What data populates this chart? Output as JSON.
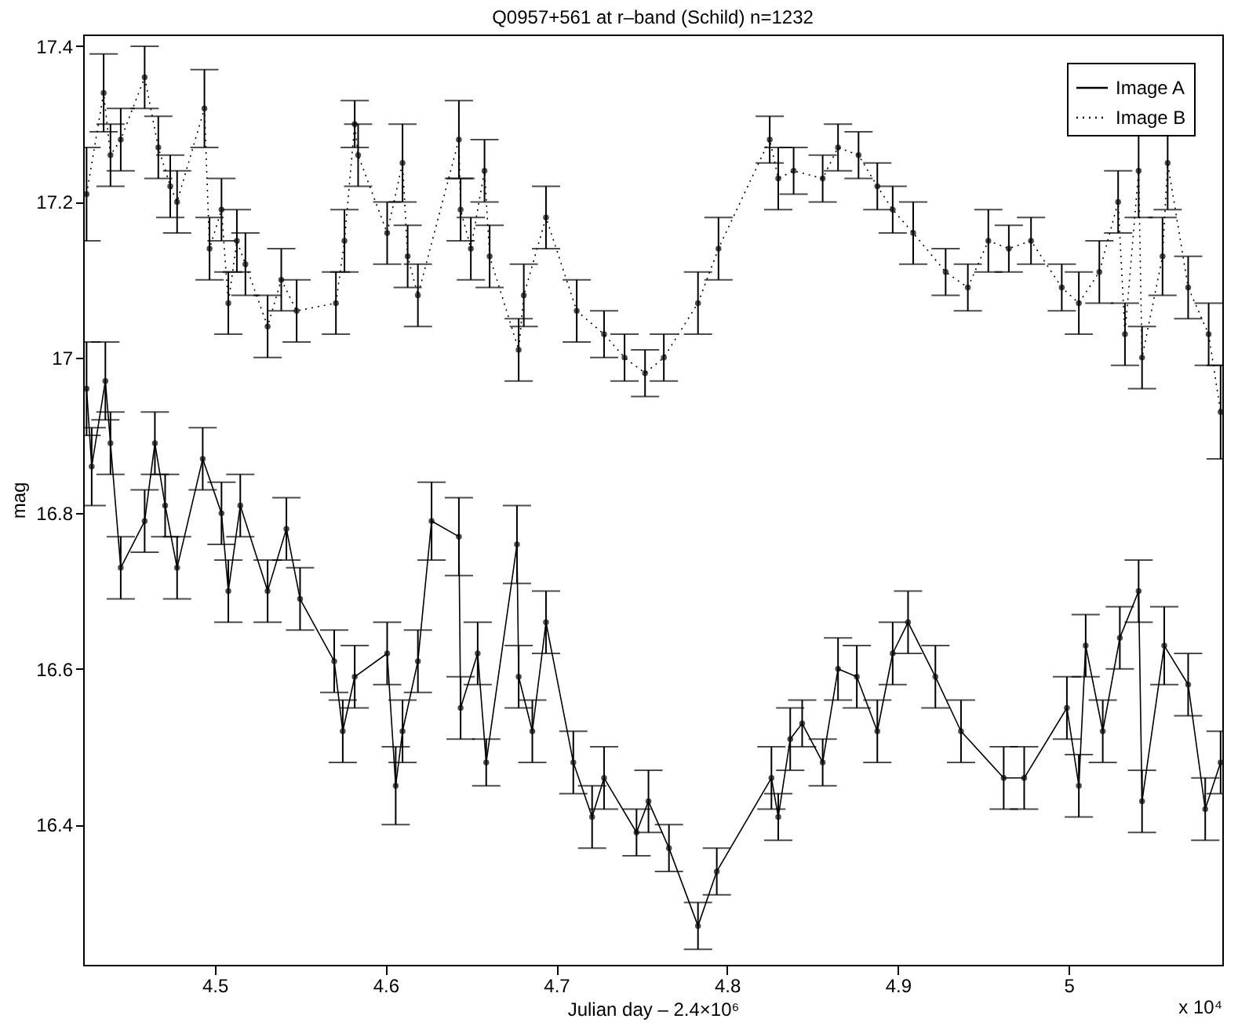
{
  "chart_data": {
    "type": "line",
    "title": "Q0957+561 at r–band (Schild)    n=1232",
    "xlabel": "Julian day  – 2.4×10⁶",
    "ylabel": "mag",
    "annotations": [
      "x 10⁴"
    ],
    "xlim": [
      4.423,
      5.09
    ],
    "ylim": [
      16.22,
      17.415
    ],
    "xticks": [
      4.5,
      4.6,
      4.7,
      4.8,
      4.9,
      5
    ],
    "yticks": [
      16.4,
      16.6,
      16.8,
      17,
      17.2,
      17.4
    ],
    "grid": false,
    "legend": "top right",
    "series": [
      {
        "name": "Image A",
        "color": "#000000",
        "line_style": "solid",
        "marker": "circle",
        "x": [
          4.425,
          4.428,
          4.436,
          4.439,
          4.445,
          4.459,
          4.465,
          4.471,
          4.478,
          4.493,
          4.504,
          4.508,
          4.515,
          4.531,
          4.542,
          4.55,
          4.57,
          4.575,
          4.582,
          4.601,
          4.606,
          4.61,
          4.619,
          4.627,
          4.643,
          4.644,
          4.654,
          4.659,
          4.677,
          4.678,
          4.686,
          4.694,
          4.71,
          4.721,
          4.728,
          4.747,
          4.754,
          4.766,
          4.783,
          4.794,
          4.826,
          4.83,
          4.837,
          4.844,
          4.856,
          4.865,
          4.876,
          4.888,
          4.897,
          4.906,
          4.922,
          4.937,
          4.962,
          4.974,
          4.999,
          5.006,
          5.01,
          5.02,
          5.03,
          5.041,
          5.043,
          5.056,
          5.07,
          5.08,
          5.089
        ],
        "values": [
          16.96,
          16.86,
          16.97,
          16.89,
          16.73,
          16.79,
          16.89,
          16.81,
          16.73,
          16.87,
          16.8,
          16.7,
          16.81,
          16.7,
          16.78,
          16.69,
          16.61,
          16.52,
          16.59,
          16.62,
          16.45,
          16.52,
          16.61,
          16.79,
          16.77,
          16.55,
          16.62,
          16.48,
          16.76,
          16.59,
          16.52,
          16.66,
          16.48,
          16.41,
          16.46,
          16.39,
          16.43,
          16.37,
          16.27,
          16.34,
          16.46,
          16.41,
          16.51,
          16.53,
          16.48,
          16.6,
          16.59,
          16.52,
          16.62,
          16.66,
          16.59,
          16.52,
          16.46,
          16.46,
          16.55,
          16.45,
          16.63,
          16.52,
          16.64,
          16.7,
          16.43,
          16.63,
          16.58,
          16.42,
          16.48
        ],
        "errors": [
          0.06,
          0.05,
          0.05,
          0.04,
          0.04,
          0.04,
          0.04,
          0.04,
          0.04,
          0.04,
          0.04,
          0.04,
          0.04,
          0.04,
          0.04,
          0.04,
          0.04,
          0.04,
          0.04,
          0.04,
          0.05,
          0.04,
          0.04,
          0.05,
          0.05,
          0.04,
          0.04,
          0.03,
          0.05,
          0.04,
          0.04,
          0.04,
          0.04,
          0.04,
          0.04,
          0.03,
          0.04,
          0.03,
          0.03,
          0.03,
          0.04,
          0.03,
          0.04,
          0.03,
          0.03,
          0.04,
          0.04,
          0.04,
          0.04,
          0.04,
          0.04,
          0.04,
          0.04,
          0.04,
          0.04,
          0.04,
          0.04,
          0.04,
          0.04,
          0.04,
          0.04,
          0.05,
          0.04,
          0.04,
          0.04
        ]
      },
      {
        "name": "Image B",
        "color": "#000000",
        "line_style": "dotted",
        "marker": "circle",
        "x": [
          4.425,
          4.435,
          4.439,
          4.445,
          4.459,
          4.467,
          4.474,
          4.478,
          4.494,
          4.497,
          4.504,
          4.508,
          4.513,
          4.518,
          4.531,
          4.539,
          4.548,
          4.571,
          4.576,
          4.582,
          4.584,
          4.601,
          4.61,
          4.613,
          4.619,
          4.643,
          4.644,
          4.65,
          4.658,
          4.661,
          4.678,
          4.681,
          4.694,
          4.712,
          4.728,
          4.74,
          4.752,
          4.763,
          4.783,
          4.795,
          4.825,
          4.83,
          4.839,
          4.856,
          4.865,
          4.877,
          4.888,
          4.897,
          4.909,
          4.928,
          4.941,
          4.953,
          4.965,
          4.978,
          4.996,
          5.006,
          5.018,
          5.029,
          5.033,
          5.041,
          5.043,
          5.055,
          5.058,
          5.07,
          5.082,
          5.089
        ],
        "values": [
          17.21,
          17.34,
          17.26,
          17.28,
          17.36,
          17.27,
          17.22,
          17.2,
          17.32,
          17.14,
          17.19,
          17.07,
          17.15,
          17.12,
          17.04,
          17.1,
          17.06,
          17.07,
          17.15,
          17.3,
          17.26,
          17.16,
          17.25,
          17.13,
          17.08,
          17.28,
          17.19,
          17.14,
          17.24,
          17.13,
          17.01,
          17.08,
          17.18,
          17.06,
          17.03,
          17,
          16.98,
          17,
          17.07,
          17.14,
          17.28,
          17.23,
          17.24,
          17.23,
          17.27,
          17.26,
          17.22,
          17.19,
          17.16,
          17.11,
          17.09,
          17.15,
          17.14,
          17.15,
          17.09,
          17.07,
          17.11,
          17.2,
          17.03,
          17.24,
          17,
          17.13,
          17.25,
          17.09,
          17.03,
          16.93
        ],
        "errors": [
          0.06,
          0.05,
          0.04,
          0.04,
          0.04,
          0.04,
          0.04,
          0.04,
          0.05,
          0.04,
          0.04,
          0.04,
          0.04,
          0.04,
          0.04,
          0.04,
          0.04,
          0.04,
          0.04,
          0.03,
          0.04,
          0.04,
          0.05,
          0.04,
          0.04,
          0.05,
          0.04,
          0.04,
          0.04,
          0.04,
          0.04,
          0.04,
          0.04,
          0.04,
          0.03,
          0.03,
          0.03,
          0.03,
          0.04,
          0.04,
          0.03,
          0.04,
          0.03,
          0.03,
          0.03,
          0.03,
          0.03,
          0.03,
          0.04,
          0.03,
          0.03,
          0.04,
          0.03,
          0.03,
          0.03,
          0.04,
          0.04,
          0.04,
          0.04,
          0.06,
          0.04,
          0.05,
          0.06,
          0.04,
          0.04,
          0.06
        ]
      }
    ]
  }
}
